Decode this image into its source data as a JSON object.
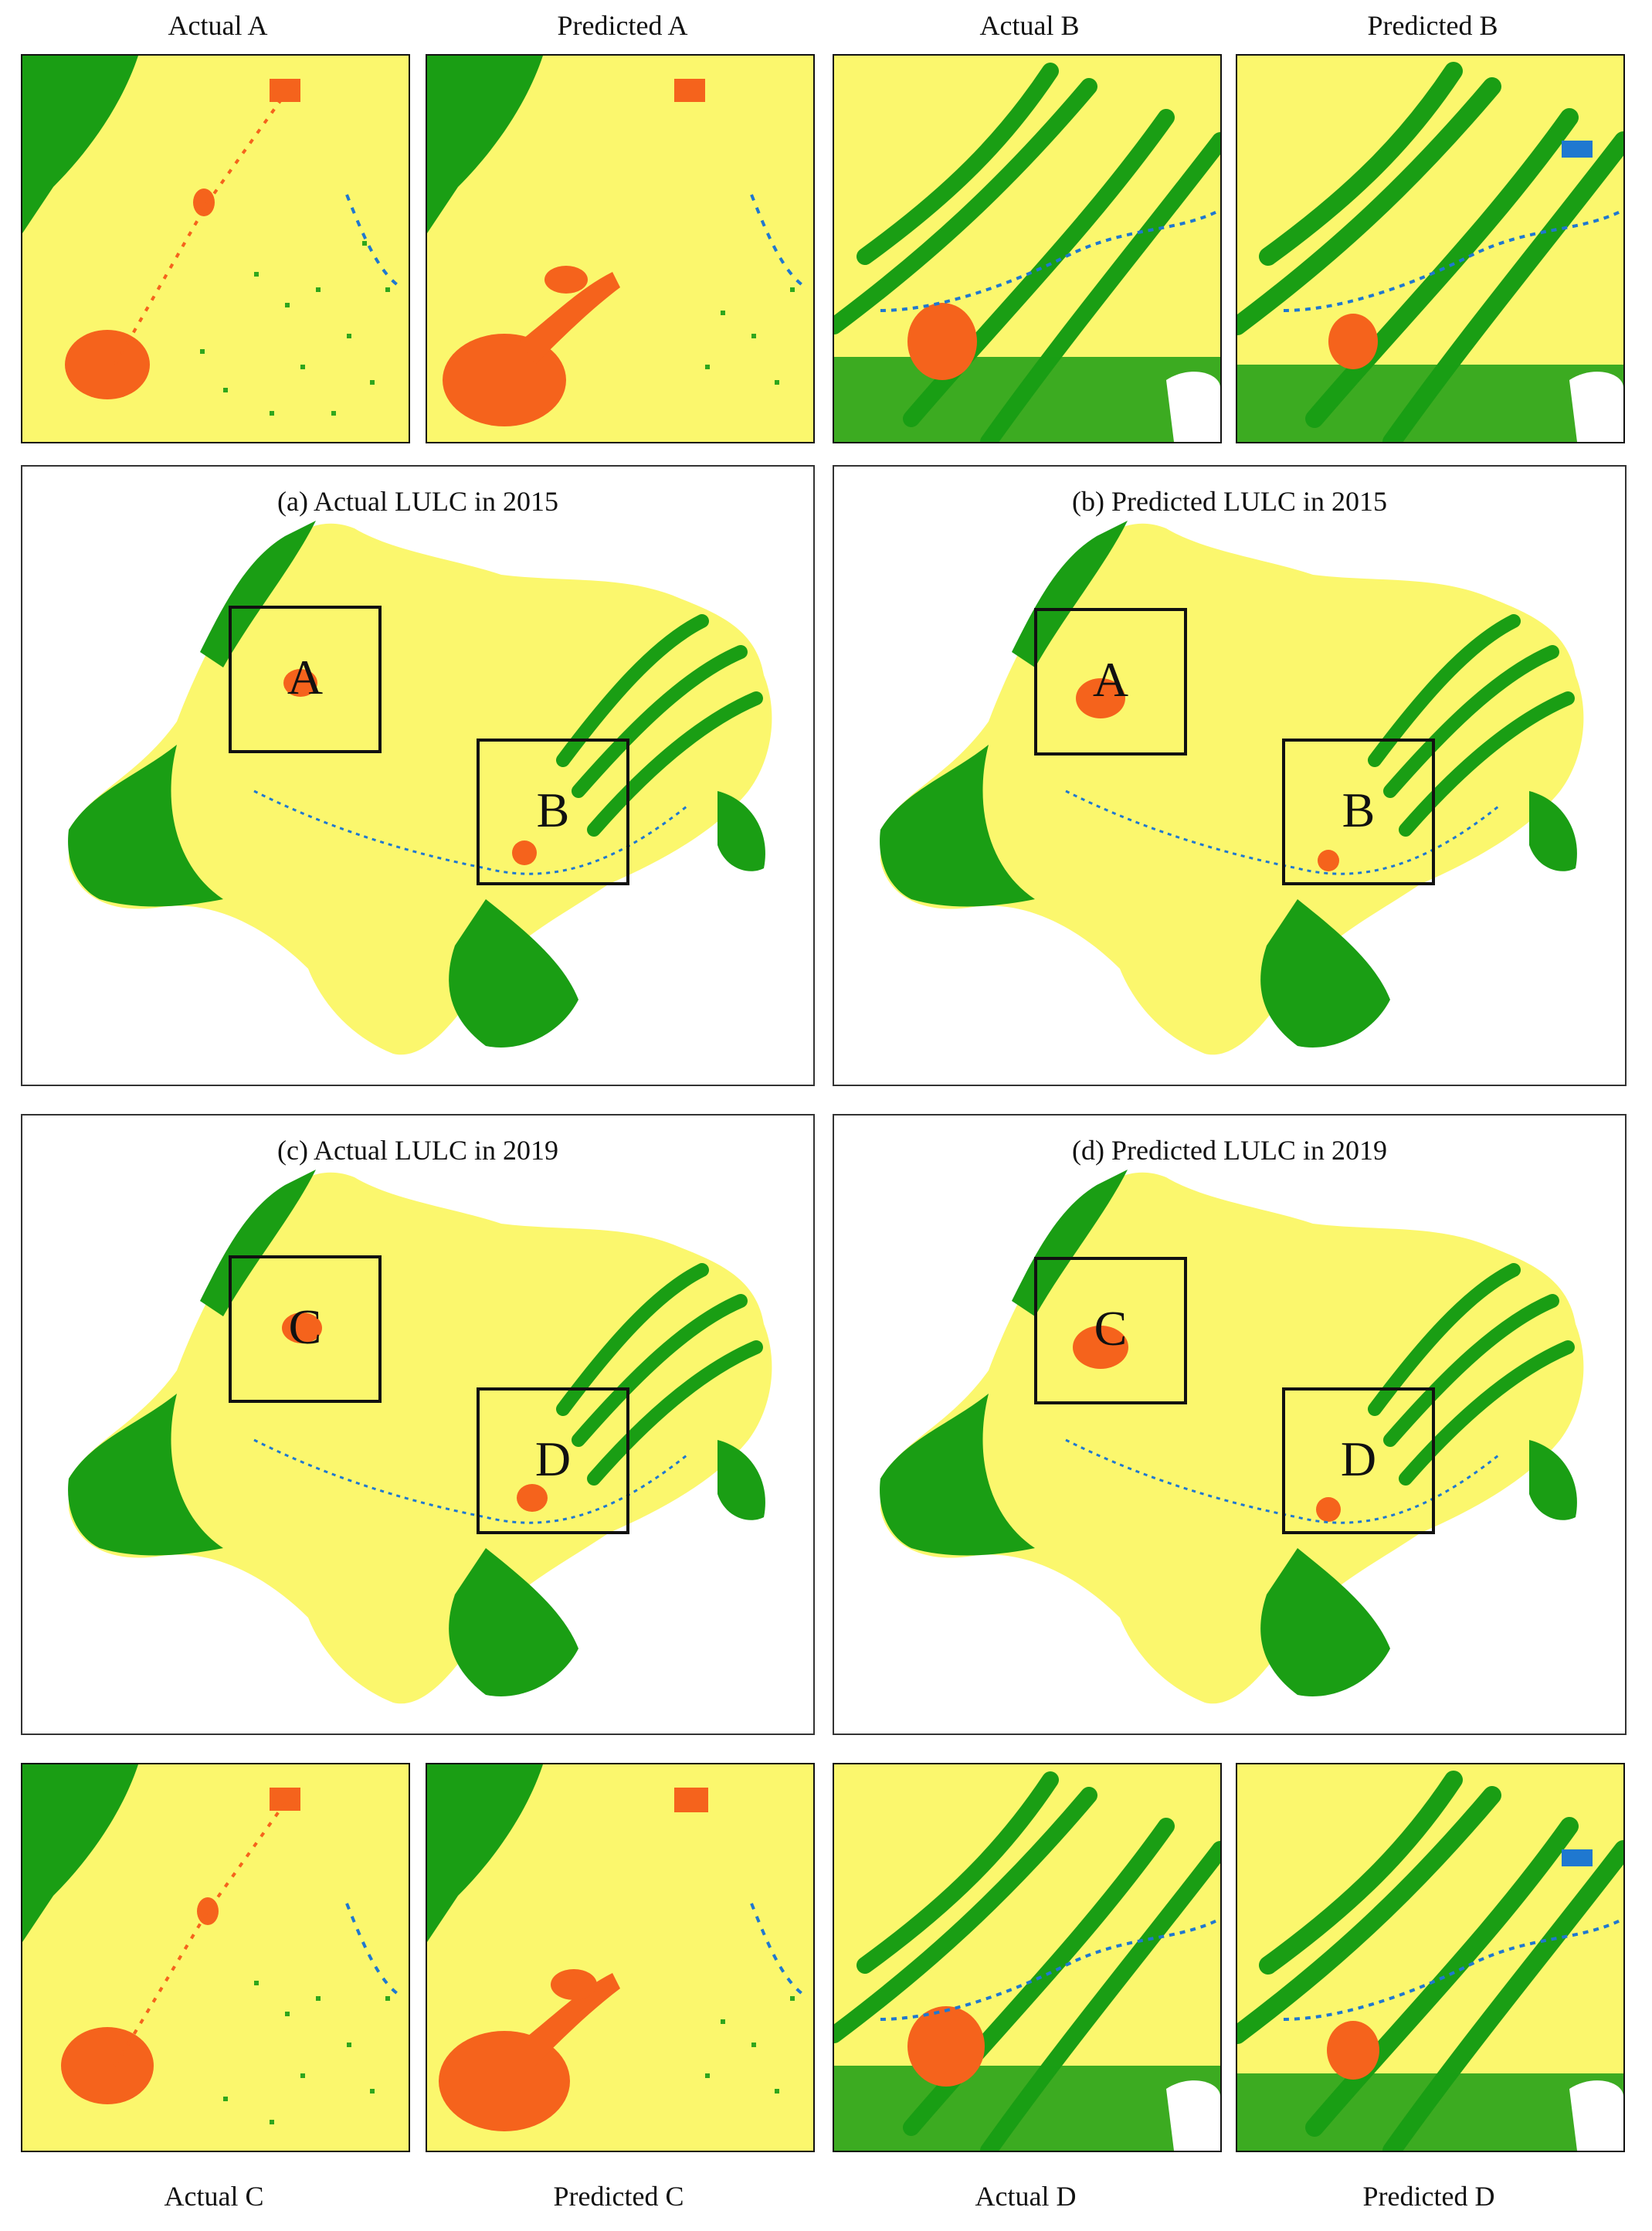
{
  "zoom_labels": {
    "actual_a": "Actual A",
    "predicted_a": "Predicted A",
    "actual_b": "Actual B",
    "predicted_b": "Predicted B",
    "actual_c": "Actual C",
    "predicted_c": "Predicted C",
    "actual_d": "Actual D",
    "predicted_d": "Predicted D"
  },
  "panels": {
    "a": {
      "title": "(a) Actual LULC in 2015",
      "box1": "A",
      "box2": "B"
    },
    "b": {
      "title": "(b) Predicted LULC in 2015",
      "box1": "A",
      "box2": "B"
    },
    "c": {
      "title": "(c) Actual LULC in 2019",
      "box1": "C",
      "box2": "D"
    },
    "d": {
      "title": "(d) Predicted LULC in 2019",
      "box1": "C",
      "box2": "D"
    }
  },
  "colors": {
    "cropland": "#fbf76d",
    "forest": "#1a9e14",
    "built_up": "#f5631c",
    "water": "#1f78d0",
    "outline": "#111111"
  }
}
